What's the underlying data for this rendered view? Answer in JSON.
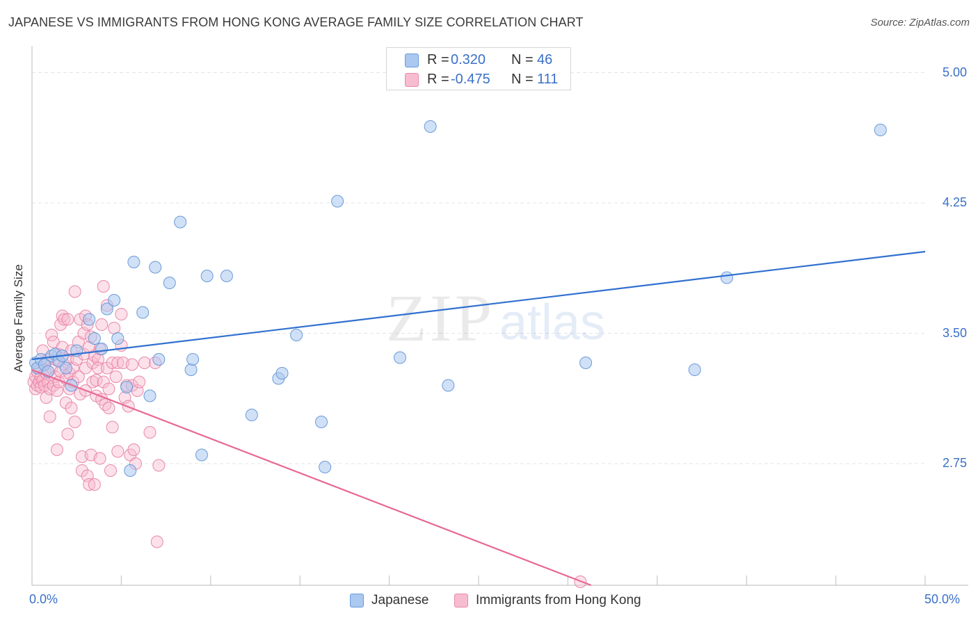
{
  "header": {
    "title": "JAPANESE VS IMMIGRANTS FROM HONG KONG AVERAGE FAMILY SIZE CORRELATION CHART",
    "source": "Source: ZipAtlas.com"
  },
  "watermark": {
    "zip": "ZIP",
    "atlas": "atlas"
  },
  "legend_top": {
    "rows": [
      {
        "r_label": "R =",
        "r_value": "0.320",
        "n_label": "N =",
        "n_value": "46"
      },
      {
        "r_label": "R =",
        "r_value": "-0.475",
        "n_label": "N =",
        "n_value": "111"
      }
    ]
  },
  "legend_bottom": {
    "items": [
      "Japanese",
      "Immigrants from Hong Kong"
    ]
  },
  "colors": {
    "japanese_fill": "#aac8f0",
    "japanese_stroke": "#6a9ad8",
    "japanese_line": "#3070d0",
    "hk_fill": "#f8bcd0",
    "hk_stroke": "#e888aa",
    "hk_line": "#e86892",
    "tick_label": "#3a70c8",
    "grid": "#e4e4e4"
  },
  "chart_data": {
    "type": "scatter",
    "title": "JAPANESE VS IMMIGRANTS FROM HONG KONG AVERAGE FAMILY SIZE CORRELATION CHART",
    "ylabel": "Average Family Size",
    "xlabel": "",
    "xlim": [
      0,
      50
    ],
    "ylim": [
      2.05,
      5.13
    ],
    "x_tick_labels": [
      "0.0%",
      "50.0%"
    ],
    "y_ticks": [
      2.75,
      3.5,
      4.25,
      5.0
    ],
    "y_tick_labels": [
      "2.75",
      "3.50",
      "4.25",
      "5.00"
    ],
    "grid": true,
    "legend_placement": "top-center",
    "series": [
      {
        "name": "Japanese",
        "r": 0.32,
        "n": 46,
        "trend": {
          "x": [
            0,
            50
          ],
          "y": [
            3.35,
            3.97
          ]
        },
        "points": [
          [
            0.2,
            3.33
          ],
          [
            0.3,
            3.3
          ],
          [
            0.5,
            3.35
          ],
          [
            0.7,
            3.32
          ],
          [
            0.9,
            3.28
          ],
          [
            1.1,
            3.37
          ],
          [
            1.3,
            3.38
          ],
          [
            1.5,
            3.34
          ],
          [
            1.7,
            3.37
          ],
          [
            1.9,
            3.3
          ],
          [
            2.2,
            3.2
          ],
          [
            2.5,
            3.4
          ],
          [
            3.2,
            3.58
          ],
          [
            3.5,
            3.47
          ],
          [
            3.9,
            3.41
          ],
          [
            4.2,
            3.64
          ],
          [
            4.6,
            3.69
          ],
          [
            4.8,
            3.47
          ],
          [
            5.3,
            3.19
          ],
          [
            5.5,
            2.71
          ],
          [
            5.7,
            3.91
          ],
          [
            6.2,
            3.62
          ],
          [
            6.6,
            3.14
          ],
          [
            6.9,
            3.88
          ],
          [
            7.1,
            3.35
          ],
          [
            7.7,
            3.79
          ],
          [
            8.3,
            4.14
          ],
          [
            8.9,
            3.29
          ],
          [
            9.0,
            3.35
          ],
          [
            9.5,
            2.8
          ],
          [
            9.8,
            3.83
          ],
          [
            10.9,
            3.83
          ],
          [
            12.3,
            3.03
          ],
          [
            13.8,
            3.24
          ],
          [
            14.0,
            3.27
          ],
          [
            14.8,
            3.49
          ],
          [
            16.2,
            2.99
          ],
          [
            16.4,
            2.73
          ],
          [
            17.1,
            4.26
          ],
          [
            20.6,
            3.36
          ],
          [
            22.3,
            4.69
          ],
          [
            23.3,
            3.2
          ],
          [
            31.0,
            3.33
          ],
          [
            37.1,
            3.29
          ],
          [
            38.9,
            3.82
          ],
          [
            47.5,
            4.67
          ]
        ]
      },
      {
        "name": "Immigrants from Hong Kong",
        "r": -0.475,
        "n": 111,
        "trend": {
          "x": [
            0,
            31.3
          ],
          "y": [
            3.29,
            2.05
          ]
        },
        "points": [
          [
            0.1,
            3.22
          ],
          [
            0.2,
            3.25
          ],
          [
            0.2,
            3.18
          ],
          [
            0.3,
            3.28
          ],
          [
            0.3,
            3.2
          ],
          [
            0.4,
            3.22
          ],
          [
            0.4,
            3.3
          ],
          [
            0.5,
            3.25
          ],
          [
            0.5,
            3.19
          ],
          [
            0.6,
            3.23
          ],
          [
            0.6,
            3.4
          ],
          [
            0.7,
            3.2
          ],
          [
            0.7,
            3.32
          ],
          [
            0.8,
            3.27
          ],
          [
            0.8,
            3.13
          ],
          [
            0.9,
            3.22
          ],
          [
            0.9,
            3.35
          ],
          [
            1.0,
            3.18
          ],
          [
            1.0,
            3.02
          ],
          [
            1.1,
            3.49
          ],
          [
            1.1,
            3.3
          ],
          [
            1.2,
            3.45
          ],
          [
            1.2,
            3.2
          ],
          [
            1.3,
            3.35
          ],
          [
            1.3,
            3.25
          ],
          [
            1.4,
            3.17
          ],
          [
            1.4,
            2.83
          ],
          [
            1.5,
            3.38
          ],
          [
            1.5,
            3.22
          ],
          [
            1.6,
            3.55
          ],
          [
            1.6,
            3.28
          ],
          [
            1.7,
            3.6
          ],
          [
            1.7,
            3.42
          ],
          [
            1.8,
            3.58
          ],
          [
            1.8,
            3.32
          ],
          [
            1.9,
            3.24
          ],
          [
            1.9,
            3.1
          ],
          [
            2.0,
            3.58
          ],
          [
            2.0,
            3.35
          ],
          [
            2.0,
            2.92
          ],
          [
            2.1,
            3.27
          ],
          [
            2.1,
            3.18
          ],
          [
            2.2,
            3.4
          ],
          [
            2.2,
            3.07
          ],
          [
            2.3,
            3.3
          ],
          [
            2.3,
            3.22
          ],
          [
            2.4,
            3.74
          ],
          [
            2.4,
            2.99
          ],
          [
            2.5,
            3.35
          ],
          [
            2.6,
            3.45
          ],
          [
            2.6,
            3.25
          ],
          [
            2.7,
            3.58
          ],
          [
            2.7,
            3.15
          ],
          [
            2.8,
            2.79
          ],
          [
            2.8,
            2.71
          ],
          [
            2.9,
            3.5
          ],
          [
            2.9,
            3.38
          ],
          [
            3.0,
            3.6
          ],
          [
            3.0,
            3.3
          ],
          [
            3.0,
            3.17
          ],
          [
            3.1,
            2.68
          ],
          [
            3.1,
            3.55
          ],
          [
            3.2,
            3.42
          ],
          [
            3.2,
            2.63
          ],
          [
            3.3,
            3.48
          ],
          [
            3.3,
            2.8
          ],
          [
            3.4,
            3.33
          ],
          [
            3.4,
            3.22
          ],
          [
            3.5,
            2.63
          ],
          [
            3.5,
            3.37
          ],
          [
            3.6,
            3.14
          ],
          [
            3.6,
            3.23
          ],
          [
            3.7,
            3.35
          ],
          [
            3.7,
            3.3
          ],
          [
            3.8,
            3.41
          ],
          [
            3.8,
            2.78
          ],
          [
            3.9,
            3.55
          ],
          [
            3.9,
            3.12
          ],
          [
            4.0,
            3.77
          ],
          [
            4.0,
            3.22
          ],
          [
            4.1,
            3.09
          ],
          [
            4.2,
            3.66
          ],
          [
            4.2,
            3.3
          ],
          [
            4.3,
            3.07
          ],
          [
            4.3,
            3.18
          ],
          [
            4.4,
            2.71
          ],
          [
            4.5,
            2.96
          ],
          [
            4.5,
            3.33
          ],
          [
            4.6,
            3.53
          ],
          [
            4.7,
            3.25
          ],
          [
            4.8,
            3.33
          ],
          [
            4.8,
            2.82
          ],
          [
            5.0,
            3.43
          ],
          [
            5.0,
            3.61
          ],
          [
            5.1,
            3.33
          ],
          [
            5.2,
            3.13
          ],
          [
            5.3,
            3.2
          ],
          [
            5.4,
            3.08
          ],
          [
            5.5,
            2.8
          ],
          [
            5.6,
            3.32
          ],
          [
            5.6,
            3.2
          ],
          [
            5.7,
            2.83
          ],
          [
            5.8,
            2.75
          ],
          [
            5.9,
            3.17
          ],
          [
            6.0,
            3.22
          ],
          [
            6.3,
            3.33
          ],
          [
            6.6,
            2.93
          ],
          [
            6.9,
            3.33
          ],
          [
            7.0,
            2.3
          ],
          [
            7.1,
            2.74
          ],
          [
            30.7,
            2.07
          ]
        ]
      }
    ]
  }
}
